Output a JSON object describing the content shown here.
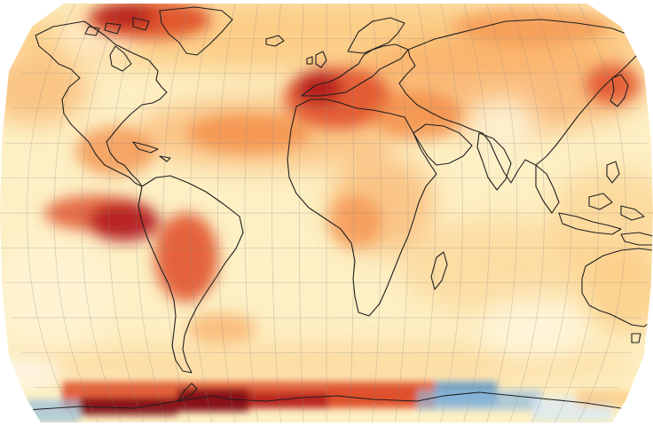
{
  "map": {
    "projection": "Robinson",
    "graticule_spacing_deg": 15,
    "scale_colors": {
      "near_zero": "#fbf2cf",
      "weak_warm": "#fde5a6",
      "moderate_warm": "#fbbf6e",
      "strong_warm": "#f2863f",
      "very_warm": "#df4a26",
      "extreme_warm": "#b31a1c",
      "darkest_warm": "#7e0a14",
      "weak_cool": "#dbe9f4",
      "moderate_cool": "#8fb9de",
      "strong_cool": "#4f8fc4"
    },
    "hot_spots": [
      "greenland-canadian-arctic",
      "north-africa-iberia",
      "eastern-pacific-near-peru",
      "central-south-america",
      "antarctica-pacific-sector"
    ],
    "cool_spots": [
      "antarctica-indian-sector",
      "antarctica-edges"
    ]
  }
}
